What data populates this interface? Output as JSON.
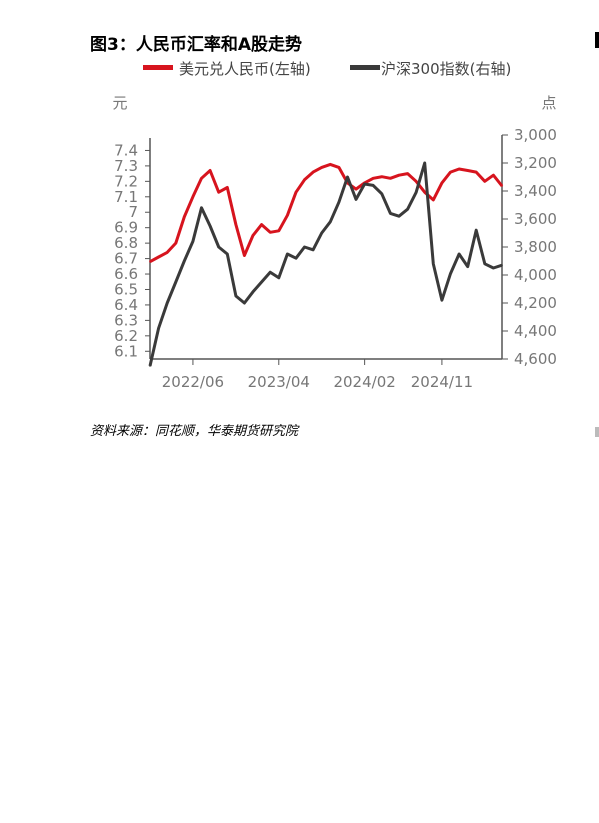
{
  "figure": {
    "title": "图3：人民币汇率和A股走势",
    "source": "资料来源：同花顺，华泰期货研究院"
  },
  "colors": {
    "usdcny": "#d7141e",
    "csi300": "#3a3a3a",
    "axis": "#555555",
    "tick_text": "#777777"
  },
  "chart_data": {
    "type": "line",
    "title": "",
    "legend_position": "top",
    "grid": false,
    "left_axis": {
      "unit_label": "元",
      "ticks": [
        "7.4",
        "7.3",
        "7.2",
        "7.1",
        "7",
        "6.9",
        "6.8",
        "6.7",
        "6.6",
        "6.5",
        "6.4",
        "6.3",
        "6.2",
        "6.1"
      ],
      "range": [
        6.05,
        7.5
      ]
    },
    "right_axis": {
      "unit_label": "点",
      "inverted": true,
      "ticks": [
        "3,000",
        "3,200",
        "3,400",
        "3,600",
        "3,800",
        "4,000",
        "4,200",
        "4,400",
        "4,600"
      ],
      "range": [
        3000,
        4600
      ]
    },
    "x_axis": {
      "tick_labels": [
        "2022/06",
        "2023/04",
        "2024/02",
        "2024/11"
      ],
      "tick_dates": [
        "2022-06",
        "2023-04",
        "2024-02",
        "2024-11"
      ],
      "range": [
        "2022-01",
        "2025-06"
      ]
    },
    "series": [
      {
        "name": "美元兑人民币(左轴)",
        "axis": "left",
        "color": "#d7141e",
        "points": [
          [
            "2022-01",
            6.68
          ],
          [
            "2022-02",
            6.71
          ],
          [
            "2022-03",
            6.74
          ],
          [
            "2022-04",
            6.8
          ],
          [
            "2022-05",
            6.97
          ],
          [
            "2022-06",
            7.1
          ],
          [
            "2022-07",
            7.22
          ],
          [
            "2022-08",
            7.27
          ],
          [
            "2022-09",
            7.13
          ],
          [
            "2022-10",
            7.16
          ],
          [
            "2022-11",
            6.92
          ],
          [
            "2022-12",
            6.72
          ],
          [
            "2023-01",
            6.85
          ],
          [
            "2023-02",
            6.92
          ],
          [
            "2023-03",
            6.87
          ],
          [
            "2023-04",
            6.88
          ],
          [
            "2023-05",
            6.98
          ],
          [
            "2023-06",
            7.13
          ],
          [
            "2023-07",
            7.21
          ],
          [
            "2023-08",
            7.26
          ],
          [
            "2023-09",
            7.29
          ],
          [
            "2023-10",
            7.31
          ],
          [
            "2023-11",
            7.29
          ],
          [
            "2023-12",
            7.19
          ],
          [
            "2024-01",
            7.15
          ],
          [
            "2024-02",
            7.19
          ],
          [
            "2024-03",
            7.22
          ],
          [
            "2024-04",
            7.23
          ],
          [
            "2024-05",
            7.22
          ],
          [
            "2024-06",
            7.24
          ],
          [
            "2024-07",
            7.25
          ],
          [
            "2024-08",
            7.2
          ],
          [
            "2024-09",
            7.13
          ],
          [
            "2024-10",
            7.08
          ],
          [
            "2024-11",
            7.19
          ],
          [
            "2024-12",
            7.26
          ],
          [
            "2025-01",
            7.28
          ],
          [
            "2025-02",
            7.27
          ],
          [
            "2025-03",
            7.26
          ],
          [
            "2025-04",
            7.2
          ],
          [
            "2025-05",
            7.24
          ],
          [
            "2025-06",
            7.17
          ]
        ]
      },
      {
        "name": "沪深300指数(右轴)",
        "axis": "right",
        "color": "#3a3a3a",
        "points": [
          [
            "2022-01",
            4650
          ],
          [
            "2022-02",
            4380
          ],
          [
            "2022-03",
            4200
          ],
          [
            "2022-04",
            4050
          ],
          [
            "2022-05",
            3900
          ],
          [
            "2022-06",
            3760
          ],
          [
            "2022-07",
            3520
          ],
          [
            "2022-08",
            3650
          ],
          [
            "2022-09",
            3800
          ],
          [
            "2022-10",
            3850
          ],
          [
            "2022-11",
            4150
          ],
          [
            "2022-12",
            4200
          ],
          [
            "2023-01",
            4120
          ],
          [
            "2023-02",
            4050
          ],
          [
            "2023-03",
            3980
          ],
          [
            "2023-04",
            4020
          ],
          [
            "2023-05",
            3850
          ],
          [
            "2023-06",
            3880
          ],
          [
            "2023-07",
            3800
          ],
          [
            "2023-08",
            3820
          ],
          [
            "2023-09",
            3700
          ],
          [
            "2023-10",
            3620
          ],
          [
            "2023-11",
            3480
          ],
          [
            "2023-12",
            3300
          ],
          [
            "2024-01",
            3460
          ],
          [
            "2024-02",
            3350
          ],
          [
            "2024-03",
            3360
          ],
          [
            "2024-04",
            3420
          ],
          [
            "2024-05",
            3560
          ],
          [
            "2024-06",
            3580
          ],
          [
            "2024-07",
            3530
          ],
          [
            "2024-08",
            3410
          ],
          [
            "2024-09",
            3200
          ],
          [
            "2024-10",
            3920
          ],
          [
            "2024-11",
            4180
          ],
          [
            "2024-12",
            3990
          ],
          [
            "2025-01",
            3850
          ],
          [
            "2025-02",
            3940
          ],
          [
            "2025-03",
            3680
          ],
          [
            "2025-04",
            3920
          ],
          [
            "2025-05",
            3950
          ],
          [
            "2025-06",
            3930
          ]
        ]
      }
    ]
  }
}
